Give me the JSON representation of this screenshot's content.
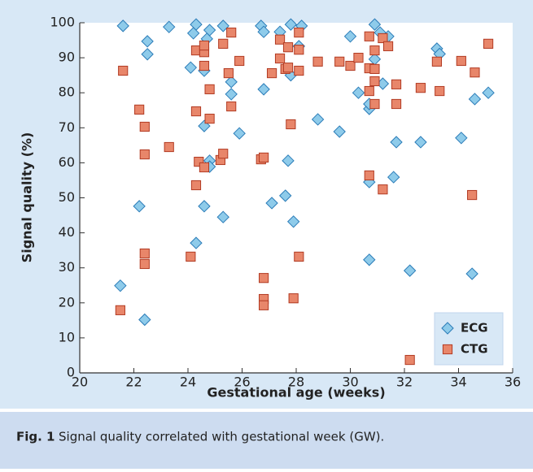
{
  "chart_data": {
    "type": "scatter",
    "xlabel": "Gestational age (weeks)",
    "ylabel": "Signal quality (%)",
    "caption_label": "Fig. 1",
    "caption": "Signal quality correlated with gestational week (GW).",
    "xlim": [
      20,
      36
    ],
    "xticks": [
      20,
      22,
      24,
      26,
      28,
      30,
      32,
      34,
      36
    ],
    "ylim": [
      0,
      100
    ],
    "yticks": [
      0,
      10,
      20,
      30,
      40,
      50,
      60,
      70,
      80,
      90,
      100
    ],
    "grid": false,
    "legend": "lower right",
    "series": [
      {
        "name": "ECG",
        "marker": "diamond",
        "color": "#8ecbea",
        "edgecolor": "#2b7cb8",
        "x": [
          21.6,
          22.5,
          22.5,
          23.3,
          24.3,
          24.2,
          24.1,
          24.8,
          24.7,
          24.6,
          25.3,
          25.6,
          25.6,
          25.9,
          24.6,
          24.8,
          24.8,
          24.6,
          25.3,
          24.3,
          22.2,
          21.5,
          22.4,
          26.7,
          26.8,
          26.8,
          27.1,
          27.4,
          27.6,
          27.8,
          27.8,
          27.7,
          27.9,
          28.2,
          28.1,
          28.8,
          29.6,
          30.0,
          30.3,
          30.7,
          30.7,
          30.7,
          30.7,
          30.9,
          30.9,
          31.1,
          31.2,
          31.4,
          31.7,
          31.6,
          32.6,
          32.2,
          33.2,
          33.3,
          34.1,
          34.6,
          35.1,
          34.5
        ],
        "values": [
          99.1,
          94.7,
          91.0,
          98.8,
          99.5,
          97.0,
          87.2,
          97.9,
          95.4,
          86.3,
          99.1,
          83.1,
          79.6,
          68.4,
          70.5,
          60.6,
          58.9,
          47.6,
          44.5,
          37.1,
          47.6,
          24.9,
          15.2,
          99.1,
          97.4,
          81.0,
          48.5,
          97.4,
          50.6,
          99.5,
          85.0,
          60.6,
          43.2,
          99.1,
          93.3,
          72.4,
          68.9,
          96.1,
          80.0,
          75.4,
          76.8,
          54.5,
          32.3,
          89.6,
          99.5,
          97.2,
          82.6,
          96.1,
          65.9,
          55.9,
          65.9,
          29.2,
          92.6,
          91.1,
          67.1,
          78.2,
          80.0,
          28.3
        ]
      },
      {
        "name": "CTG",
        "marker": "square",
        "color": "#e8866a",
        "edgecolor": "#b23b23",
        "x": [
          21.6,
          22.2,
          22.4,
          22.4,
          22.4,
          22.4,
          21.5,
          23.3,
          24.1,
          24.3,
          24.3,
          24.4,
          24.3,
          24.6,
          24.6,
          24.6,
          24.8,
          24.8,
          24.6,
          25.2,
          25.3,
          25.3,
          25.5,
          25.6,
          25.6,
          25.9,
          26.7,
          26.8,
          26.8,
          26.8,
          26.8,
          27.1,
          27.4,
          27.4,
          27.6,
          27.7,
          27.7,
          27.8,
          27.9,
          28.1,
          28.1,
          28.1,
          28.1,
          28.8,
          29.6,
          30.0,
          30.3,
          30.7,
          30.7,
          30.7,
          30.7,
          30.9,
          30.9,
          30.9,
          30.9,
          31.2,
          31.2,
          31.4,
          31.7,
          31.7,
          32.6,
          32.2,
          33.2,
          33.3,
          34.1,
          34.6,
          34.5,
          35.1
        ],
        "values": [
          86.3,
          75.2,
          70.3,
          62.4,
          34.1,
          31.1,
          17.9,
          64.5,
          33.2,
          74.7,
          53.6,
          60.3,
          92.1,
          91.6,
          93.5,
          87.7,
          81.0,
          72.6,
          58.7,
          60.8,
          62.6,
          94.0,
          85.6,
          76.1,
          97.2,
          89.1,
          61.0,
          61.5,
          27.1,
          21.1,
          19.3,
          85.6,
          95.2,
          89.8,
          86.8,
          93.0,
          87.2,
          71.0,
          21.3,
          86.3,
          92.3,
          97.2,
          33.2,
          88.9,
          88.9,
          87.7,
          90.0,
          96.1,
          87.0,
          80.5,
          56.4,
          83.3,
          76.8,
          86.8,
          92.1,
          52.4,
          95.6,
          93.3,
          82.4,
          76.8,
          81.4,
          3.7,
          88.9,
          80.5,
          89.1,
          85.8,
          50.8,
          94.0
        ]
      }
    ]
  }
}
